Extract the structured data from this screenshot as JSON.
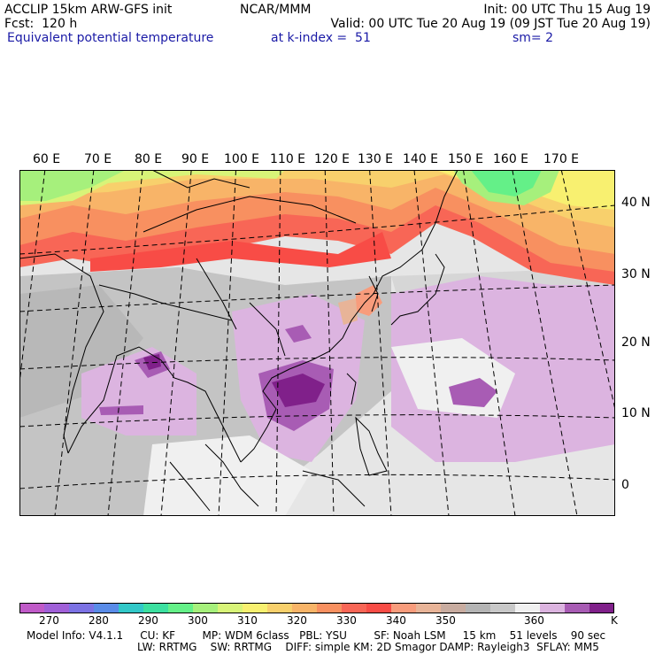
{
  "header": {
    "line1_left": "ACCLIP 15km ARW-GFS init",
    "line1_center": "NCAR/MMM",
    "line1_right": "Init: 00 UTC Thu 15 Aug 19",
    "line2_left": "Fcst:  120 h",
    "line2_right": "Valid: 00 UTC Tue 20 Aug 19 (09 JST Tue 20 Aug 19)",
    "line3_left": "Equivalent potential temperature",
    "line3_center": "at k-index =  51",
    "line3_right": "sm= 2"
  },
  "map": {
    "lon_labels": [
      "60 E",
      "70 E",
      "80 E",
      "90 E",
      "100 E",
      "110 E",
      "120 E",
      "130 E",
      "140 E",
      "150 E",
      "160 E",
      "170 E"
    ],
    "lat_labels": [
      "40 N",
      "30 N",
      "20 N",
      "10 N",
      "0"
    ]
  },
  "colorbar": {
    "colors": [
      "#c05ac8",
      "#a060d8",
      "#7c72e4",
      "#5a8ce8",
      "#32c8c8",
      "#3ce0a0",
      "#64f088",
      "#a6f07c",
      "#d8f478",
      "#f8f070",
      "#f8d06c",
      "#f8b468",
      "#f89060",
      "#f86656",
      "#f84c46",
      "#f89c7c",
      "#e8b498",
      "#c8aca0",
      "#b4b4b4",
      "#c8c8c8",
      "#f0f0f0",
      "#dcb4e0",
      "#a85cb4",
      "#80208a"
    ],
    "labels": [
      "270",
      "280",
      "290",
      "300",
      "310",
      "320",
      "330",
      "340",
      "350",
      "360"
    ],
    "unit": "K"
  },
  "footer": {
    "line1": "Model Info: V4.1.1     CU: KF        MP: WDM 6class   PBL: YSU        SF: Noah LSM     15 km    51 levels    90 sec",
    "line2": "LW: RRTMG    SW: RRTMG    DIFF: simple KM: 2D Smagor DAMP: Rayleigh3  SFLAY: MM5"
  }
}
